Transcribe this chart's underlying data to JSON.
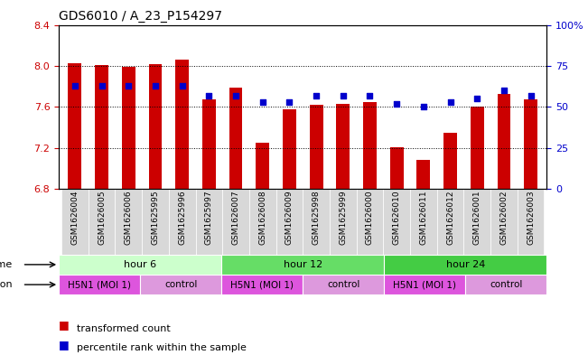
{
  "title": "GDS6010 / A_23_P154297",
  "samples": [
    "GSM1626004",
    "GSM1626005",
    "GSM1626006",
    "GSM1625995",
    "GSM1625996",
    "GSM1625997",
    "GSM1626007",
    "GSM1626008",
    "GSM1626009",
    "GSM1625998",
    "GSM1625999",
    "GSM1626000",
    "GSM1626010",
    "GSM1626011",
    "GSM1626012",
    "GSM1626001",
    "GSM1626002",
    "GSM1626003"
  ],
  "transformed_counts": [
    8.03,
    8.01,
    7.99,
    8.02,
    8.06,
    7.67,
    7.79,
    7.25,
    7.58,
    7.62,
    7.63,
    7.65,
    7.21,
    7.08,
    7.35,
    7.6,
    7.73,
    7.67
  ],
  "percentile_ranks": [
    63,
    63,
    63,
    63,
    63,
    57,
    57,
    53,
    53,
    57,
    57,
    57,
    52,
    50,
    53,
    55,
    60,
    57
  ],
  "y_min": 6.8,
  "y_max": 8.4,
  "y_ticks": [
    6.8,
    7.2,
    7.6,
    8.0,
    8.4
  ],
  "right_ticks": [
    0,
    25,
    50,
    75,
    100
  ],
  "right_tick_labels": [
    "0",
    "25",
    "50",
    "75",
    "100%"
  ],
  "bar_color": "#cc0000",
  "dot_color": "#0000cc",
  "tick_label_color_left": "#cc0000",
  "tick_label_color_right": "#0000cc",
  "time_groups": [
    {
      "label": "hour 6",
      "start": 0,
      "end": 6,
      "color": "#ccffcc"
    },
    {
      "label": "hour 12",
      "start": 6,
      "end": 12,
      "color": "#66dd66"
    },
    {
      "label": "hour 24",
      "start": 12,
      "end": 18,
      "color": "#44cc44"
    }
  ],
  "infection_groups": [
    {
      "label": "H5N1 (MOI 1)",
      "start": 0,
      "end": 3,
      "color": "#dd55dd"
    },
    {
      "label": "control",
      "start": 3,
      "end": 6,
      "color": "#dd99dd"
    },
    {
      "label": "H5N1 (MOI 1)",
      "start": 6,
      "end": 9,
      "color": "#dd55dd"
    },
    {
      "label": "control",
      "start": 9,
      "end": 12,
      "color": "#dd99dd"
    },
    {
      "label": "H5N1 (MOI 1)",
      "start": 12,
      "end": 15,
      "color": "#dd55dd"
    },
    {
      "label": "control",
      "start": 15,
      "end": 18,
      "color": "#dd99dd"
    }
  ],
  "dotted_lines": [
    8.0,
    7.6,
    7.2
  ],
  "legend": [
    {
      "color": "#cc0000",
      "label": "transformed count"
    },
    {
      "color": "#0000cc",
      "label": "percentile rank within the sample"
    }
  ]
}
